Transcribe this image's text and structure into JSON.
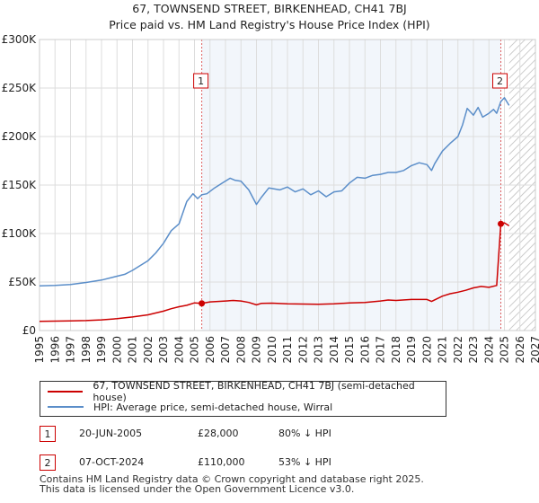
{
  "title": {
    "line1": "67, TOWNSEND STREET, BIRKENHEAD, CH41 7BJ",
    "line2": "Price paid vs. HM Land Registry's House Price Index (HPI)"
  },
  "colors": {
    "price_line": "#cc0000",
    "hpi_line": "#5b8ec9",
    "sale_marker": "#cc0000",
    "vline": "#e06060",
    "grid": "#dddddd",
    "sale_shade": "#e8eef8"
  },
  "chart_data": {
    "type": "line",
    "ylabel": "",
    "xlabel": "",
    "xlim": [
      1995,
      2027
    ],
    "ylim": [
      0,
      300000
    ],
    "y_ticks": [
      0,
      50000,
      100000,
      150000,
      200000,
      250000,
      300000
    ],
    "y_tick_labels": [
      "£0",
      "£50K",
      "£100K",
      "£150K",
      "£200K",
      "£250K",
      "£300K"
    ],
    "x_ticks": [
      1995,
      1996,
      1997,
      1998,
      1999,
      2000,
      2001,
      2002,
      2003,
      2004,
      2005,
      2006,
      2007,
      2008,
      2009,
      2010,
      2011,
      2012,
      2013,
      2014,
      2015,
      2016,
      2017,
      2018,
      2019,
      2020,
      2021,
      2022,
      2023,
      2024,
      2025,
      2026,
      2027
    ],
    "x_tick_labels": [
      "1995",
      "1996",
      "1997",
      "1998",
      "1999",
      "2000",
      "2001",
      "2002",
      "2003",
      "2004",
      "2005",
      "2006",
      "2007",
      "2008",
      "2009",
      "2010",
      "2011",
      "2012",
      "2013",
      "2014",
      "2015",
      "2016",
      "2017",
      "2018",
      "2019",
      "2020",
      "2021",
      "2022",
      "2023",
      "2024",
      "2025",
      "2026",
      "2027"
    ],
    "hatch_from": 2025.3,
    "series": [
      {
        "name": "67, TOWNSEND STREET, BIRKENHEAD, CH41 7BJ (semi-detached house)",
        "color": "#cc0000",
        "x": [
          1995.0,
          1996.0,
          1997.0,
          1998.0,
          1999.0,
          2000.0,
          2001.0,
          2002.0,
          2003.0,
          2003.5,
          2004.0,
          2004.5,
          2005.0,
          2005.47,
          2006.0,
          2007.0,
          2007.5,
          2008.0,
          2008.5,
          2009.0,
          2009.3,
          2010.0,
          2011.0,
          2012.0,
          2013.0,
          2014.0,
          2015.0,
          2016.0,
          2017.0,
          2017.5,
          2018.0,
          2019.0,
          2020.0,
          2020.3,
          2021.0,
          2021.5,
          2022.0,
          2022.5,
          2023.0,
          2023.5,
          2024.0,
          2024.5,
          2024.77,
          2025.0,
          2025.3
        ],
        "values": [
          9500,
          9700,
          9900,
          10300,
          11000,
          12200,
          14000,
          16200,
          20000,
          22500,
          24500,
          26000,
          28500,
          28000,
          29500,
          30500,
          31000,
          30500,
          29000,
          26500,
          28000,
          28200,
          27500,
          27300,
          27000,
          27500,
          28500,
          29000,
          30500,
          31500,
          31000,
          32000,
          32000,
          30000,
          35500,
          38000,
          39500,
          41500,
          44000,
          45500,
          44500,
          46500,
          110000,
          111000,
          108000
        ]
      },
      {
        "name": "HPI: Average price, semi-detached house, Wirral",
        "color": "#5b8ec9",
        "x": [
          1995.0,
          1996.0,
          1997.0,
          1998.0,
          1999.0,
          2000.0,
          2000.5,
          2001.0,
          2001.5,
          2002.0,
          2002.5,
          2003.0,
          2003.5,
          2004.0,
          2004.5,
          2004.9,
          2005.2,
          2005.47,
          2005.8,
          2006.3,
          2006.8,
          2007.3,
          2007.6,
          2008.0,
          2008.5,
          2009.0,
          2009.3,
          2009.8,
          2010.5,
          2011.0,
          2011.5,
          2012.0,
          2012.5,
          2013.0,
          2013.5,
          2014.0,
          2014.5,
          2015.0,
          2015.5,
          2016.0,
          2016.5,
          2017.0,
          2017.5,
          2018.0,
          2018.5,
          2019.0,
          2019.5,
          2020.0,
          2020.3,
          2020.5,
          2021.0,
          2021.5,
          2022.0,
          2022.3,
          2022.6,
          2023.0,
          2023.3,
          2023.6,
          2024.0,
          2024.3,
          2024.5,
          2024.77,
          2025.0,
          2025.3
        ],
        "values": [
          46000,
          46500,
          47500,
          49500,
          52000,
          56000,
          58000,
          62000,
          67000,
          72000,
          80000,
          90000,
          103000,
          110000,
          133000,
          141000,
          136000,
          140000,
          141000,
          147000,
          152000,
          157000,
          155000,
          154000,
          145000,
          130000,
          137000,
          147000,
          145000,
          148000,
          143000,
          146000,
          140000,
          144000,
          138000,
          143000,
          144000,
          152000,
          158000,
          157000,
          160000,
          161000,
          163000,
          163000,
          165000,
          170000,
          173000,
          171000,
          165000,
          172000,
          185000,
          193000,
          200000,
          212000,
          229000,
          222000,
          230000,
          220000,
          224000,
          228000,
          224000,
          236000,
          240000,
          232000
        ]
      }
    ],
    "sales": [
      {
        "label": "1",
        "year": 2005.47,
        "value": 28000
      },
      {
        "label": "2",
        "year": 2024.77,
        "value": 110000
      }
    ]
  },
  "legend": {
    "series1": "67, TOWNSEND STREET, BIRKENHEAD, CH41 7BJ (semi-detached house)",
    "series2": "HPI: Average price, semi-detached house, Wirral"
  },
  "sales_table": [
    {
      "num": "1",
      "date": "20-JUN-2005",
      "price": "£28,000",
      "hpi": "80% ↓ HPI"
    },
    {
      "num": "2",
      "date": "07-OCT-2024",
      "price": "£110,000",
      "hpi": "53% ↓ HPI"
    }
  ],
  "footer": {
    "line1": "Contains HM Land Registry data © Crown copyright and database right 2025.",
    "line2": "This data is licensed under the Open Government Licence v3.0."
  }
}
